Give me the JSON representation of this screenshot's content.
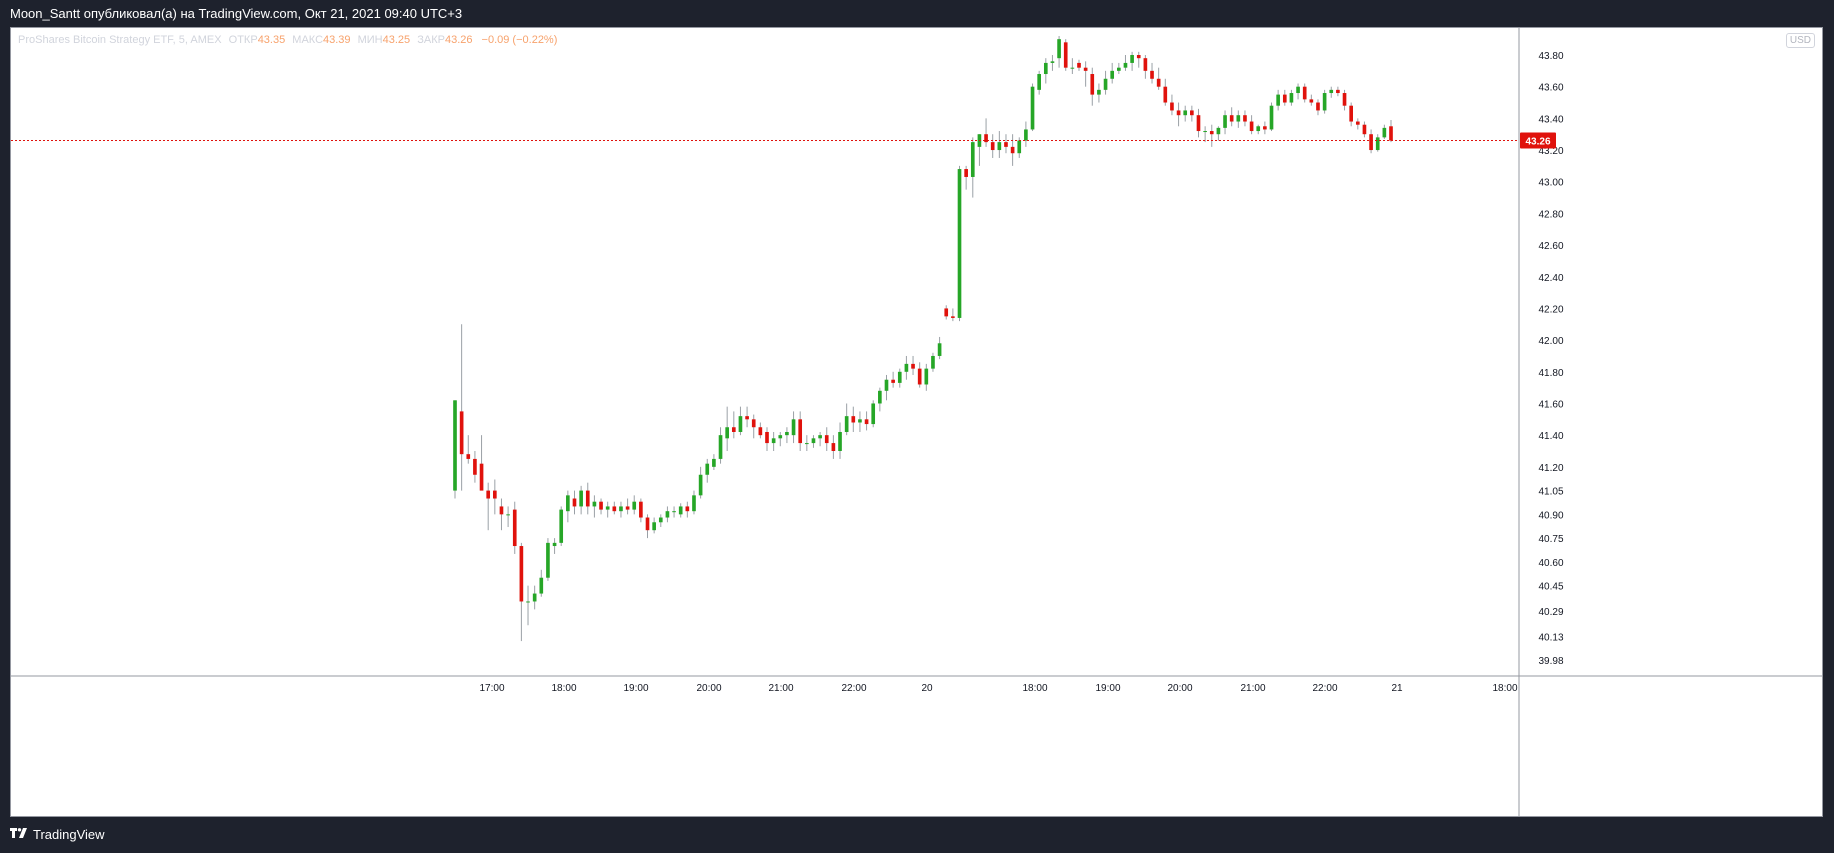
{
  "header": {
    "title": "Moon_Santt опубликовал(а) на TradingView.com, Окт 21, 2021 09:40 UTC+3"
  },
  "legend": {
    "symbol": "ProShares Bitcoin Strategy ETF, 5, AMEX",
    "open_label": "ОТКР",
    "open_value": "43.35",
    "high_label": "МАКС",
    "high_value": "43.39",
    "low_label": "МИН",
    "low_value": "43.25",
    "close_label": "ЗАКР",
    "close_value": "43.26",
    "change": "−0.09 (−0.22%)"
  },
  "currency": "USD",
  "footer": {
    "brand": "TradingView",
    "logo_icon": "tradingview-logo-icon"
  },
  "colors": {
    "up": "#26a627",
    "down": "#e0120c",
    "last_price": "#e0120c"
  },
  "chart_data": {
    "type": "candlestick",
    "timeframe": "5",
    "exchange": "AMEX",
    "last_price": "43.26",
    "y_ticks": [
      "43.80",
      "43.60",
      "43.40",
      "43.20",
      "43.00",
      "42.80",
      "42.60",
      "42.40",
      "42.20",
      "42.00",
      "41.80",
      "41.60",
      "41.40",
      "41.20",
      "41.05",
      "40.90",
      "40.75",
      "40.60",
      "40.45",
      "40.29",
      "40.13",
      "39.98"
    ],
    "x_ticks": [
      "17:00",
      "18:00",
      "19:00",
      "20:00",
      "21:00",
      "22:00",
      "20",
      "18:00",
      "19:00",
      "20:00",
      "21:00",
      "22:00",
      "21",
      "18:00"
    ],
    "ylim": [
      39.93,
      43.92
    ],
    "candles": [
      {
        "o": 41.05,
        "h": 41.62,
        "l": 41.0,
        "c": 41.62
      },
      {
        "o": 41.55,
        "h": 42.1,
        "l": 41.05,
        "c": 41.28
      },
      {
        "o": 41.28,
        "h": 41.4,
        "l": 41.22,
        "c": 41.25
      },
      {
        "o": 41.25,
        "h": 41.3,
        "l": 41.1,
        "c": 41.15
      },
      {
        "o": 41.22,
        "h": 41.4,
        "l": 41.08,
        "c": 41.05
      },
      {
        "o": 41.05,
        "h": 41.1,
        "l": 40.8,
        "c": 41.0
      },
      {
        "o": 41.05,
        "h": 41.12,
        "l": 40.9,
        "c": 41.0
      },
      {
        "o": 40.95,
        "h": 41.0,
        "l": 40.8,
        "c": 40.9
      },
      {
        "o": 40.9,
        "h": 40.95,
        "l": 40.82,
        "c": 40.9
      },
      {
        "o": 40.93,
        "h": 40.98,
        "l": 40.65,
        "c": 40.7
      },
      {
        "o": 40.7,
        "h": 40.72,
        "l": 40.1,
        "c": 40.35
      },
      {
        "o": 40.35,
        "h": 40.45,
        "l": 40.2,
        "c": 40.35
      },
      {
        "o": 40.35,
        "h": 40.45,
        "l": 40.3,
        "c": 40.4
      },
      {
        "o": 40.4,
        "h": 40.55,
        "l": 40.38,
        "c": 40.5
      },
      {
        "o": 40.5,
        "h": 40.75,
        "l": 40.48,
        "c": 40.72
      },
      {
        "o": 40.7,
        "h": 40.75,
        "l": 40.65,
        "c": 40.72
      },
      {
        "o": 40.72,
        "h": 40.95,
        "l": 40.7,
        "c": 40.93
      },
      {
        "o": 40.92,
        "h": 41.05,
        "l": 40.85,
        "c": 41.02
      },
      {
        "o": 41.0,
        "h": 41.05,
        "l": 40.9,
        "c": 40.95
      },
      {
        "o": 40.95,
        "h": 41.08,
        "l": 40.9,
        "c": 41.05
      },
      {
        "o": 41.05,
        "h": 41.1,
        "l": 40.9,
        "c": 40.95
      },
      {
        "o": 40.95,
        "h": 41.02,
        "l": 40.88,
        "c": 40.98
      },
      {
        "o": 40.98,
        "h": 41.0,
        "l": 40.9,
        "c": 40.93
      },
      {
        "o": 40.93,
        "h": 40.98,
        "l": 40.88,
        "c": 40.95
      },
      {
        "o": 40.95,
        "h": 40.98,
        "l": 40.9,
        "c": 40.92
      },
      {
        "o": 40.92,
        "h": 40.98,
        "l": 40.88,
        "c": 40.95
      },
      {
        "o": 40.95,
        "h": 41.0,
        "l": 40.9,
        "c": 40.93
      },
      {
        "o": 40.93,
        "h": 41.02,
        "l": 40.9,
        "c": 40.98
      },
      {
        "o": 40.98,
        "h": 41.0,
        "l": 40.85,
        "c": 40.88
      },
      {
        "o": 40.88,
        "h": 40.9,
        "l": 40.75,
        "c": 40.8
      },
      {
        "o": 40.8,
        "h": 40.88,
        "l": 40.78,
        "c": 40.85
      },
      {
        "o": 40.85,
        "h": 40.9,
        "l": 40.82,
        "c": 40.88
      },
      {
        "o": 40.88,
        "h": 40.95,
        "l": 40.85,
        "c": 40.92
      },
      {
        "o": 40.92,
        "h": 40.95,
        "l": 40.88,
        "c": 40.92
      },
      {
        "o": 40.9,
        "h": 40.97,
        "l": 40.88,
        "c": 40.95
      },
      {
        "o": 40.95,
        "h": 40.98,
        "l": 40.88,
        "c": 40.92
      },
      {
        "o": 40.92,
        "h": 41.05,
        "l": 40.9,
        "c": 41.02
      },
      {
        "o": 41.02,
        "h": 41.2,
        "l": 41.0,
        "c": 41.15
      },
      {
        "o": 41.15,
        "h": 41.25,
        "l": 41.1,
        "c": 41.22
      },
      {
        "o": 41.2,
        "h": 41.28,
        "l": 41.18,
        "c": 41.25
      },
      {
        "o": 41.25,
        "h": 41.45,
        "l": 41.22,
        "c": 41.4
      },
      {
        "o": 41.38,
        "h": 41.58,
        "l": 41.3,
        "c": 41.45
      },
      {
        "o": 41.45,
        "h": 41.55,
        "l": 41.38,
        "c": 41.42
      },
      {
        "o": 41.42,
        "h": 41.58,
        "l": 41.4,
        "c": 41.52
      },
      {
        "o": 41.52,
        "h": 41.58,
        "l": 41.45,
        "c": 41.5
      },
      {
        "o": 41.5,
        "h": 41.53,
        "l": 41.38,
        "c": 41.45
      },
      {
        "o": 41.45,
        "h": 41.48,
        "l": 41.38,
        "c": 41.4
      },
      {
        "o": 41.42,
        "h": 41.45,
        "l": 41.3,
        "c": 41.35
      },
      {
        "o": 41.35,
        "h": 41.42,
        "l": 41.3,
        "c": 41.38
      },
      {
        "o": 41.38,
        "h": 41.42,
        "l": 41.33,
        "c": 41.4
      },
      {
        "o": 41.4,
        "h": 41.45,
        "l": 41.35,
        "c": 41.42
      },
      {
        "o": 41.4,
        "h": 41.55,
        "l": 41.35,
        "c": 41.5
      },
      {
        "o": 41.5,
        "h": 41.55,
        "l": 41.3,
        "c": 41.35
      },
      {
        "o": 41.35,
        "h": 41.4,
        "l": 41.3,
        "c": 41.35
      },
      {
        "o": 41.35,
        "h": 41.4,
        "l": 41.32,
        "c": 41.38
      },
      {
        "o": 41.38,
        "h": 41.42,
        "l": 41.33,
        "c": 41.4
      },
      {
        "o": 41.4,
        "h": 41.45,
        "l": 41.3,
        "c": 41.35
      },
      {
        "o": 41.35,
        "h": 41.4,
        "l": 41.25,
        "c": 41.3
      },
      {
        "o": 41.3,
        "h": 41.48,
        "l": 41.25,
        "c": 41.42
      },
      {
        "o": 41.42,
        "h": 41.6,
        "l": 41.4,
        "c": 41.52
      },
      {
        "o": 41.52,
        "h": 41.58,
        "l": 41.42,
        "c": 41.48
      },
      {
        "o": 41.48,
        "h": 41.55,
        "l": 41.42,
        "c": 41.5
      },
      {
        "o": 41.5,
        "h": 41.55,
        "l": 41.43,
        "c": 41.47
      },
      {
        "o": 41.47,
        "h": 41.62,
        "l": 41.45,
        "c": 41.6
      },
      {
        "o": 41.6,
        "h": 41.7,
        "l": 41.55,
        "c": 41.68
      },
      {
        "o": 41.68,
        "h": 41.78,
        "l": 41.62,
        "c": 41.75
      },
      {
        "o": 41.75,
        "h": 41.8,
        "l": 41.7,
        "c": 41.73
      },
      {
        "o": 41.73,
        "h": 41.82,
        "l": 41.7,
        "c": 41.8
      },
      {
        "o": 41.8,
        "h": 41.9,
        "l": 41.75,
        "c": 41.85
      },
      {
        "o": 41.85,
        "h": 41.9,
        "l": 41.78,
        "c": 41.82
      },
      {
        "o": 41.82,
        "h": 41.86,
        "l": 41.7,
        "c": 41.72
      },
      {
        "o": 41.72,
        "h": 41.85,
        "l": 41.68,
        "c": 41.82
      },
      {
        "o": 41.82,
        "h": 41.92,
        "l": 41.8,
        "c": 41.9
      },
      {
        "o": 41.9,
        "h": 42.02,
        "l": 41.88,
        "c": 41.98
      },
      {
        "o": 42.2,
        "h": 42.22,
        "l": 42.13,
        "c": 42.15
      },
      {
        "o": 42.15,
        "h": 42.2,
        "l": 42.12,
        "c": 42.14
      },
      {
        "o": 42.14,
        "h": 43.1,
        "l": 42.12,
        "c": 43.08
      },
      {
        "o": 43.08,
        "h": 43.1,
        "l": 42.95,
        "c": 43.03
      },
      {
        "o": 43.03,
        "h": 43.28,
        "l": 42.9,
        "c": 43.25
      },
      {
        "o": 43.22,
        "h": 43.3,
        "l": 43.1,
        "c": 43.3
      },
      {
        "o": 43.3,
        "h": 43.4,
        "l": 43.22,
        "c": 43.25
      },
      {
        "o": 43.25,
        "h": 43.3,
        "l": 43.15,
        "c": 43.2
      },
      {
        "o": 43.2,
        "h": 43.32,
        "l": 43.15,
        "c": 43.25
      },
      {
        "o": 43.25,
        "h": 43.3,
        "l": 43.18,
        "c": 43.22
      },
      {
        "o": 43.22,
        "h": 43.3,
        "l": 43.1,
        "c": 43.18
      },
      {
        "o": 43.18,
        "h": 43.28,
        "l": 43.15,
        "c": 43.26
      },
      {
        "o": 43.26,
        "h": 43.38,
        "l": 43.22,
        "c": 43.33
      },
      {
        "o": 43.33,
        "h": 43.62,
        "l": 43.32,
        "c": 43.6
      },
      {
        "o": 43.58,
        "h": 43.7,
        "l": 43.55,
        "c": 43.68
      },
      {
        "o": 43.68,
        "h": 43.78,
        "l": 43.62,
        "c": 43.75
      },
      {
        "o": 43.75,
        "h": 43.8,
        "l": 43.7,
        "c": 43.76
      },
      {
        "o": 43.78,
        "h": 43.92,
        "l": 43.72,
        "c": 43.9
      },
      {
        "o": 43.88,
        "h": 43.9,
        "l": 43.7,
        "c": 43.72
      },
      {
        "o": 43.72,
        "h": 43.78,
        "l": 43.68,
        "c": 43.72
      },
      {
        "o": 43.75,
        "h": 43.77,
        "l": 43.7,
        "c": 43.72
      },
      {
        "o": 43.72,
        "h": 43.76,
        "l": 43.6,
        "c": 43.7
      },
      {
        "o": 43.68,
        "h": 43.72,
        "l": 43.48,
        "c": 43.55
      },
      {
        "o": 43.55,
        "h": 43.62,
        "l": 43.5,
        "c": 43.58
      },
      {
        "o": 43.58,
        "h": 43.7,
        "l": 43.55,
        "c": 43.65
      },
      {
        "o": 43.65,
        "h": 43.75,
        "l": 43.62,
        "c": 43.7
      },
      {
        "o": 43.7,
        "h": 43.75,
        "l": 43.68,
        "c": 43.72
      },
      {
        "o": 43.72,
        "h": 43.8,
        "l": 43.7,
        "c": 43.75
      },
      {
        "o": 43.75,
        "h": 43.82,
        "l": 43.7,
        "c": 43.8
      },
      {
        "o": 43.8,
        "h": 43.82,
        "l": 43.72,
        "c": 43.78
      },
      {
        "o": 43.78,
        "h": 43.8,
        "l": 43.65,
        "c": 43.7
      },
      {
        "o": 43.7,
        "h": 43.75,
        "l": 43.62,
        "c": 43.65
      },
      {
        "o": 43.65,
        "h": 43.72,
        "l": 43.58,
        "c": 43.6
      },
      {
        "o": 43.6,
        "h": 43.65,
        "l": 43.48,
        "c": 43.5
      },
      {
        "o": 43.5,
        "h": 43.55,
        "l": 43.42,
        "c": 43.45
      },
      {
        "o": 43.45,
        "h": 43.5,
        "l": 43.35,
        "c": 43.42
      },
      {
        "o": 43.42,
        "h": 43.48,
        "l": 43.38,
        "c": 43.45
      },
      {
        "o": 43.45,
        "h": 43.48,
        "l": 43.38,
        "c": 43.42
      },
      {
        "o": 43.42,
        "h": 43.46,
        "l": 43.28,
        "c": 43.32
      },
      {
        "o": 43.32,
        "h": 43.35,
        "l": 43.25,
        "c": 43.32
      },
      {
        "o": 43.32,
        "h": 43.36,
        "l": 43.22,
        "c": 43.3
      },
      {
        "o": 43.3,
        "h": 43.35,
        "l": 43.26,
        "c": 43.34
      },
      {
        "o": 43.34,
        "h": 43.45,
        "l": 43.3,
        "c": 43.42
      },
      {
        "o": 43.42,
        "h": 43.47,
        "l": 43.35,
        "c": 43.38
      },
      {
        "o": 43.38,
        "h": 43.45,
        "l": 43.34,
        "c": 43.42
      },
      {
        "o": 43.42,
        "h": 43.45,
        "l": 43.35,
        "c": 43.38
      },
      {
        "o": 43.38,
        "h": 43.42,
        "l": 43.3,
        "c": 43.32
      },
      {
        "o": 43.32,
        "h": 43.36,
        "l": 43.3,
        "c": 43.35
      },
      {
        "o": 43.35,
        "h": 43.38,
        "l": 43.3,
        "c": 43.33
      },
      {
        "o": 43.33,
        "h": 43.5,
        "l": 43.32,
        "c": 43.48
      },
      {
        "o": 43.48,
        "h": 43.58,
        "l": 43.45,
        "c": 43.55
      },
      {
        "o": 43.55,
        "h": 43.58,
        "l": 43.48,
        "c": 43.5
      },
      {
        "o": 43.5,
        "h": 43.58,
        "l": 43.48,
        "c": 43.56
      },
      {
        "o": 43.56,
        "h": 43.62,
        "l": 43.52,
        "c": 43.6
      },
      {
        "o": 43.6,
        "h": 43.62,
        "l": 43.5,
        "c": 43.52
      },
      {
        "o": 43.52,
        "h": 43.55,
        "l": 43.48,
        "c": 43.5
      },
      {
        "o": 43.5,
        "h": 43.52,
        "l": 43.42,
        "c": 43.45
      },
      {
        "o": 43.45,
        "h": 43.58,
        "l": 43.43,
        "c": 43.56
      },
      {
        "o": 43.56,
        "h": 43.6,
        "l": 43.53,
        "c": 43.58
      },
      {
        "o": 43.58,
        "h": 43.6,
        "l": 43.54,
        "c": 43.56
      },
      {
        "o": 43.56,
        "h": 43.58,
        "l": 43.45,
        "c": 43.48
      },
      {
        "o": 43.48,
        "h": 43.5,
        "l": 43.35,
        "c": 43.38
      },
      {
        "o": 43.38,
        "h": 43.4,
        "l": 43.33,
        "c": 43.36
      },
      {
        "o": 43.36,
        "h": 43.38,
        "l": 43.28,
        "c": 43.3
      },
      {
        "o": 43.3,
        "h": 43.33,
        "l": 43.18,
        "c": 43.2
      },
      {
        "o": 43.2,
        "h": 43.3,
        "l": 43.19,
        "c": 43.28
      },
      {
        "o": 43.28,
        "h": 43.36,
        "l": 43.27,
        "c": 43.34
      },
      {
        "o": 43.35,
        "h": 43.39,
        "l": 43.25,
        "c": 43.26
      }
    ]
  }
}
